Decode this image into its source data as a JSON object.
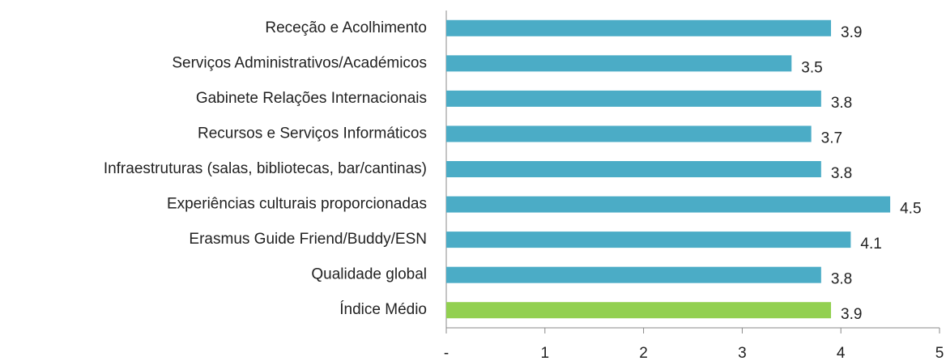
{
  "chart_data": {
    "type": "barh",
    "categories": [
      "Receção e Acolhimento",
      "Serviços Administrativos/Académicos",
      "Gabinete Relações Internacionais",
      "Recursos e Serviços Informáticos",
      "Infraestruturas (salas, bibliotecas, bar/cantinas)",
      "Experiências culturais proporcionadas",
      "Erasmus Guide Friend/Buddy/ESN",
      "Qualidade global",
      "Índice Médio"
    ],
    "values": [
      3.9,
      3.5,
      3.8,
      3.7,
      3.8,
      4.5,
      4.1,
      3.8,
      3.9
    ],
    "colors": [
      "#4bacc6",
      "#4bacc6",
      "#4bacc6",
      "#4bacc6",
      "#4bacc6",
      "#4bacc6",
      "#4bacc6",
      "#4bacc6",
      "#92d050"
    ],
    "xlim": [
      0,
      5
    ],
    "xticks": [
      {
        "value": 0,
        "label": "-"
      },
      1,
      2,
      3,
      4,
      5
    ]
  }
}
